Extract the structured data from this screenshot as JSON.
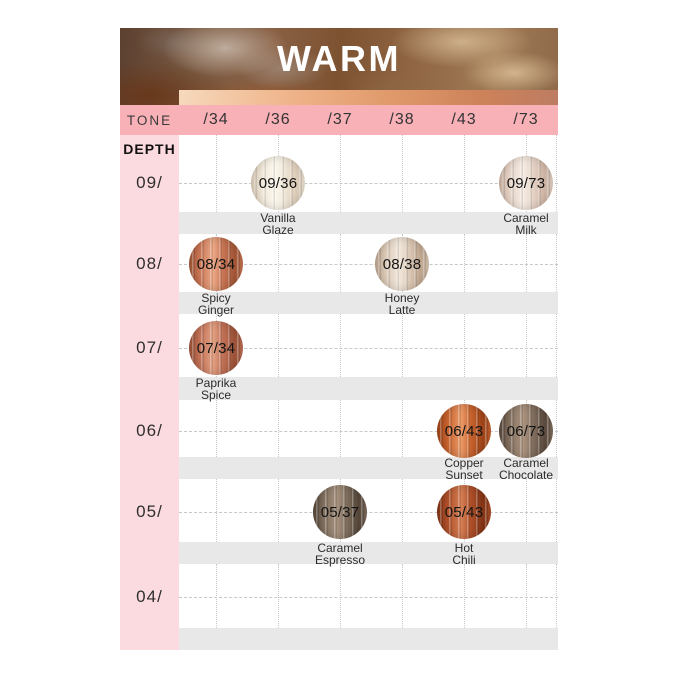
{
  "header": {
    "title": "WARM"
  },
  "tone_row": {
    "label": "TONE"
  },
  "depth_column": {
    "label": "DEPTH"
  },
  "palette": {
    "tone_row_bg": "#f9b1b8",
    "depth_column_bg": "#fcdbe0",
    "label_band_bg": "#e8e8e8",
    "grid_line": "#c8c8c8",
    "banner_text": "#ffffff",
    "tone_gradient": [
      "#f6d9bc",
      "#efb389",
      "#e09a6b",
      "#cd8259",
      "#bd7c62"
    ]
  },
  "chart_data": {
    "type": "table",
    "title": "WARM",
    "columns": [
      "/34",
      "/36",
      "/37",
      "/38",
      "/43",
      "/73"
    ],
    "rows": [
      "09/",
      "08/",
      "07/",
      "06/",
      "05/",
      "04/"
    ],
    "cells": [
      {
        "row": "09/",
        "column": "/36",
        "code": "09/36",
        "name": "Vanilla Glaze",
        "swatch": {
          "light": "#fbf7ee",
          "base": "#f0e7d8",
          "dark": "#ddccb8"
        }
      },
      {
        "row": "09/",
        "column": "/73",
        "code": "09/73",
        "name": "Caramel Milk",
        "swatch": {
          "light": "#f6ede5",
          "base": "#e6d4c7",
          "dark": "#cfb5a4"
        }
      },
      {
        "row": "08/",
        "column": "/34",
        "code": "08/34",
        "name": "Spicy Ginger",
        "swatch": {
          "light": "#eba988",
          "base": "#c97655",
          "dark": "#a25636"
        }
      },
      {
        "row": "08/",
        "column": "/38",
        "code": "08/38",
        "name": "Honey Latte",
        "swatch": {
          "light": "#f2e8dc",
          "base": "#dccab8",
          "dark": "#c0a68f"
        }
      },
      {
        "row": "07/",
        "column": "/34",
        "code": "07/34",
        "name": "Paprika Spice",
        "swatch": {
          "light": "#e2a082",
          "base": "#c27257",
          "dark": "#9c5238"
        }
      },
      {
        "row": "06/",
        "column": "/43",
        "code": "06/43",
        "name": "Copper Sunset",
        "swatch": {
          "light": "#ea9a68",
          "base": "#c9642f",
          "dark": "#9e4318"
        }
      },
      {
        "row": "06/",
        "column": "/73",
        "code": "06/73",
        "name": "Caramel Chocolate",
        "swatch": {
          "light": "#ab9480",
          "base": "#84705f",
          "dark": "#5b4a3e"
        }
      },
      {
        "row": "05/",
        "column": "/37",
        "code": "05/37",
        "name": "Caramel Espresso",
        "swatch": {
          "light": "#a5907d",
          "base": "#81705f",
          "dark": "#544538"
        }
      },
      {
        "row": "05/",
        "column": "/43",
        "code": "05/43",
        "name": "Hot Chili",
        "swatch": {
          "light": "#d47f55",
          "base": "#b05029",
          "dark": "#823415"
        }
      }
    ]
  }
}
